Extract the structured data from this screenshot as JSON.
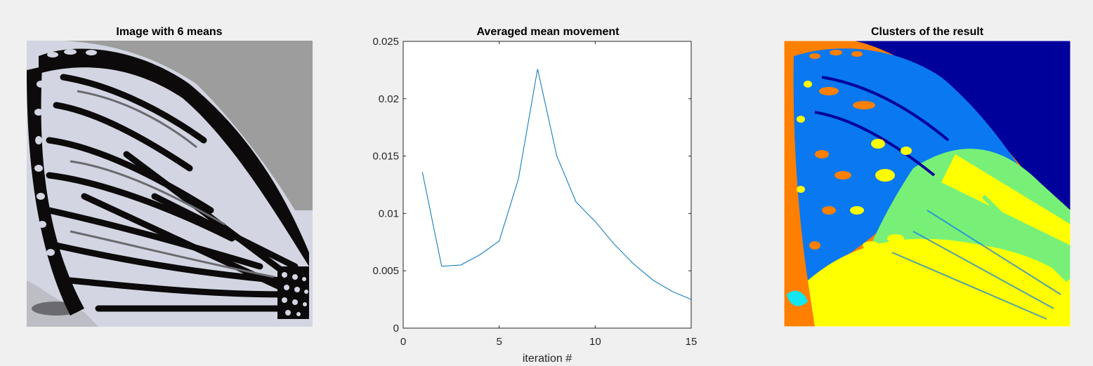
{
  "figure": {
    "left_panel": {
      "title": "Image with 6 means"
    },
    "right_panel": {
      "title": "Clusters of the result"
    }
  },
  "chart_data": [
    {
      "type": "image",
      "title": "Image with 6 means",
      "description": "Grayscale butterfly wing image quantized to 6 gray levels",
      "palette": [
        "#0c0a0a",
        "#3c3a3a",
        "#6a6a70",
        "#9d9d9d",
        "#bdbdc6",
        "#d3d6e2"
      ]
    },
    {
      "type": "line",
      "title": "Averaged mean movement",
      "xlabel": "iteration #",
      "ylabel": "",
      "xlim": [
        0,
        15
      ],
      "ylim": [
        0,
        0.025
      ],
      "xticks": [
        "0",
        "5",
        "10",
        "15"
      ],
      "yticks": [
        "0",
        "0.005",
        "0.01",
        "0.015",
        "0.02",
        "0.025"
      ],
      "grid": false,
      "series": [
        {
          "color": "#0072bd",
          "x": [
            1,
            2,
            3,
            4,
            5,
            6,
            7,
            8,
            9,
            10,
            11,
            12,
            13,
            14,
            15
          ],
          "y": [
            0.0136,
            0.0054,
            0.0055,
            0.0064,
            0.0076,
            0.013,
            0.0226,
            0.015,
            0.011,
            0.0093,
            0.0073,
            0.0056,
            0.0042,
            0.0032,
            0.0025
          ]
        }
      ]
    },
    {
      "type": "image",
      "title": "Clusters of the result",
      "description": "Butterfly wing segmented into 6 clusters shown with a jet colormap",
      "palette": [
        "#00009a",
        "#0a78f0",
        "#12e6f0",
        "#78f078",
        "#ffff00",
        "#ff7f00"
      ]
    }
  ]
}
